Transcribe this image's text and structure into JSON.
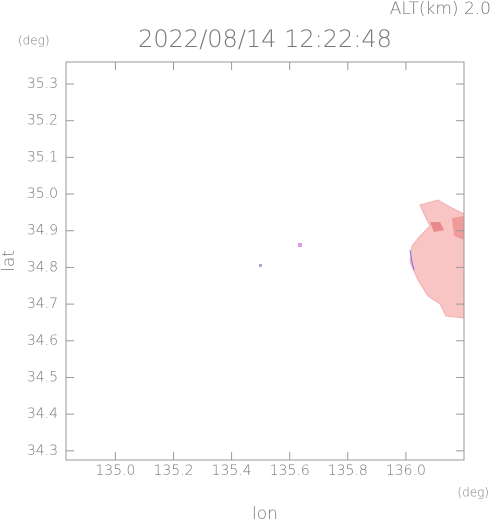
{
  "chart_data": {
    "type": "map",
    "title": "2022/08/14 12:22:48",
    "subtitle": "ALT(km) 2.0",
    "y_unit": "(deg)",
    "x_unit": "(deg)",
    "xlabel": "lon",
    "ylabel": "lat",
    "xlim": [
      134.83,
      136.2
    ],
    "ylim": [
      34.275,
      35.36
    ],
    "xticks": [
      {
        "value": 135.0,
        "label": "135.0"
      },
      135.2,
      135.4,
      135.6,
      135.8,
      {
        "value": 136.0,
        "label": "136.0"
      }
    ],
    "yticks": [
      35.3,
      35.2,
      35.1,
      {
        "value": 35.0,
        "label": "35.0"
      },
      34.9,
      34.8,
      34.7,
      34.6,
      34.5,
      34.4,
      34.3
    ]
  }
}
